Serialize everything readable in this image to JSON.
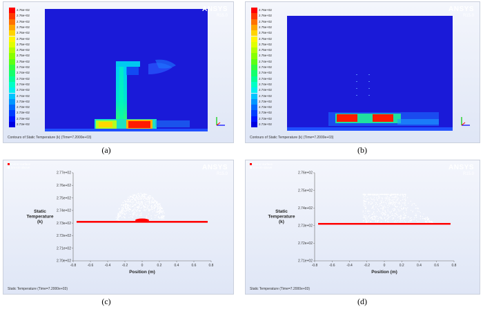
{
  "brand": {
    "name": "ANSYS",
    "version": "R15.0"
  },
  "panels": {
    "a": {
      "caption": "(a)",
      "footer": "Contours of Static Temperature (k)  (Time=7.2000e+03)",
      "legend_labels": [
        "2.76e+02",
        "2.76e+02",
        "2.76e+02",
        "2.76e+02",
        "2.76e+02",
        "2.75e+02",
        "2.75e+02",
        "2.75e+02",
        "2.75e+02",
        "2.75e+02",
        "2.74e+02",
        "2.74e+02",
        "2.74e+02",
        "2.74e+02",
        "2.74e+02",
        "2.74e+02",
        "2.73e+02",
        "2.73e+02",
        "2.73e+02",
        "2.73e+02",
        "2.73e+02"
      ]
    },
    "b": {
      "caption": "(b)",
      "footer": "Contours of Static Temperature (k)  (Time=7.2000e+03)",
      "legend_labels": [
        "2.76e+02",
        "2.76e+02",
        "2.76e+02",
        "2.75e+02",
        "2.75e+02",
        "2.75e+02",
        "2.75e+02",
        "2.75e+02",
        "2.75e+02",
        "2.74e+02",
        "2.74e+02",
        "2.74e+02",
        "2.74e+02",
        "2.74e+02",
        "2.74e+02",
        "2.73e+02",
        "2.73e+02",
        "2.73e+02",
        "2.73e+02",
        "2.73e+02",
        "2.73e+02"
      ]
    },
    "c": {
      "caption": "(c)",
      "footer": "Static Temperature  (Time=7.2000e+03)",
      "legend": [
        "mirror-surface",
        "tim-cm-above"
      ]
    },
    "d": {
      "caption": "(d)",
      "footer": "Static Temperature  (Time=7.2000e+03)",
      "legend": [
        "mirror-surface",
        "tim-cm-above"
      ]
    }
  },
  "colors": {
    "legend_scale": [
      "#ff0000",
      "#ff3a00",
      "#ff7200",
      "#ffa600",
      "#ffd400",
      "#fff600",
      "#e0ff00",
      "#b4ff00",
      "#88ff00",
      "#5cff14",
      "#30ff40",
      "#14ff6c",
      "#00ff9a",
      "#00ffc6",
      "#00f0ee",
      "#00c4ff",
      "#0096ff",
      "#0068ff",
      "#003cff",
      "#0014ff",
      "#0000e0"
    ],
    "series_mirror": "#ff0000",
    "series_above": "#ffffff"
  },
  "chart_data": [
    {
      "type": "scatter",
      "title": "",
      "xlabel": "Position (m)",
      "ylabel": "Static\nTemperature\n(k)",
      "xlim": [
        -0.8,
        0.8
      ],
      "ylim": [
        270,
        277
      ],
      "x_ticks": [
        "-0.8",
        "-0.6",
        "-0.4",
        "-0.2",
        "0",
        "0.2",
        "0.4",
        "0.6",
        "0.8"
      ],
      "y_ticks": [
        "2.70e+02",
        "2.71e+02",
        "2.72e+02",
        "2.73e+02",
        "2.74e+02",
        "2.75e+02",
        "2.76e+02",
        "2.77e+02"
      ],
      "legend_position": "top-left",
      "series": [
        {
          "name": "mirror-surface",
          "line": {
            "x": [
              -0.76,
              0.76
            ],
            "y": [
              273.1,
              273.1
            ]
          },
          "cluster": {
            "x_range": [
              -0.08,
              0.08
            ],
            "y_range": [
              273.1,
              273.35
            ]
          }
        },
        {
          "name": "tim-cm-above",
          "dome": {
            "x_center": -0.02,
            "half_width": 0.29,
            "y_base": 273.2,
            "y_peak": 275.4
          }
        }
      ]
    },
    {
      "type": "scatter",
      "title": "",
      "xlabel": "Position (m)",
      "ylabel": "Static\nTemperature\n(k)",
      "xlim": [
        -0.8,
        0.8
      ],
      "ylim": [
        271,
        276
      ],
      "x_ticks": [
        "-0.8",
        "-0.6",
        "-0.4",
        "-0.2",
        "0",
        "0.2",
        "0.4",
        "0.6",
        "0.8"
      ],
      "y_ticks": [
        "2.71e+02",
        "2.72e+02",
        "2.73e+02",
        "2.74e+02",
        "2.75e+02",
        "2.76e+02"
      ],
      "legend_position": "top-left",
      "series": [
        {
          "name": "mirror-surface",
          "line": {
            "x": [
              -0.76,
              0.76
            ],
            "y": [
              273.1,
              273.1
            ]
          }
        },
        {
          "name": "tim-cm-above",
          "block": {
            "x_range": [
              -0.25,
              0.25
            ],
            "y_top": 274.8,
            "y_bottom": 273.2,
            "tail_x": 0.55
          }
        }
      ]
    }
  ]
}
